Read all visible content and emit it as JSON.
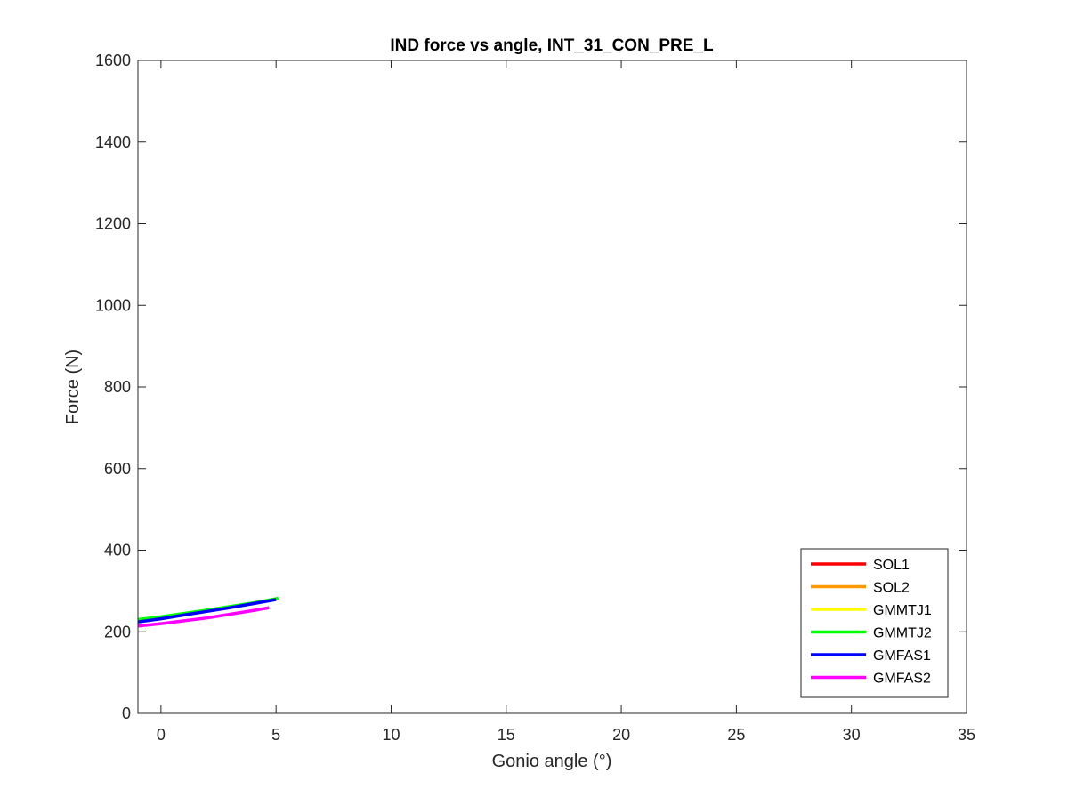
{
  "chart_data": {
    "type": "line",
    "title": "IND force vs angle, INT_31_CON_PRE_L",
    "xlabel": "Gonio angle (°)",
    "ylabel": "Force (N)",
    "xlim": [
      -1,
      35
    ],
    "ylim": [
      0,
      1600
    ],
    "xticks": [
      0,
      5,
      10,
      15,
      20,
      25,
      30,
      35
    ],
    "yticks": [
      0,
      200,
      400,
      600,
      800,
      1000,
      1200,
      1400,
      1600
    ],
    "grid": false,
    "legend_position": "bottom-right",
    "series": [
      {
        "name": "SOL1",
        "color": "#ff0000",
        "x": [],
        "y": []
      },
      {
        "name": "SOL2",
        "color": "#ff9900",
        "x": [],
        "y": []
      },
      {
        "name": "GMMTJ1",
        "color": "#ffff00",
        "x": [],
        "y": []
      },
      {
        "name": "GMMTJ2",
        "color": "#00ff00",
        "x": [
          -1,
          0,
          1,
          2,
          3,
          4,
          5,
          5.1
        ],
        "y": [
          230,
          237,
          245,
          253,
          262,
          271,
          281,
          283
        ]
      },
      {
        "name": "GMFAS1",
        "color": "#0000ff",
        "x": [
          -1,
          0,
          1,
          2,
          3,
          4,
          5
        ],
        "y": [
          224,
          232,
          241,
          250,
          259,
          269,
          279
        ]
      },
      {
        "name": "GMFAS2",
        "color": "#ff00ff",
        "x": [
          -1,
          0,
          1,
          2,
          3,
          4,
          4.7
        ],
        "y": [
          214,
          220,
          227,
          234,
          243,
          252,
          259
        ]
      }
    ]
  }
}
